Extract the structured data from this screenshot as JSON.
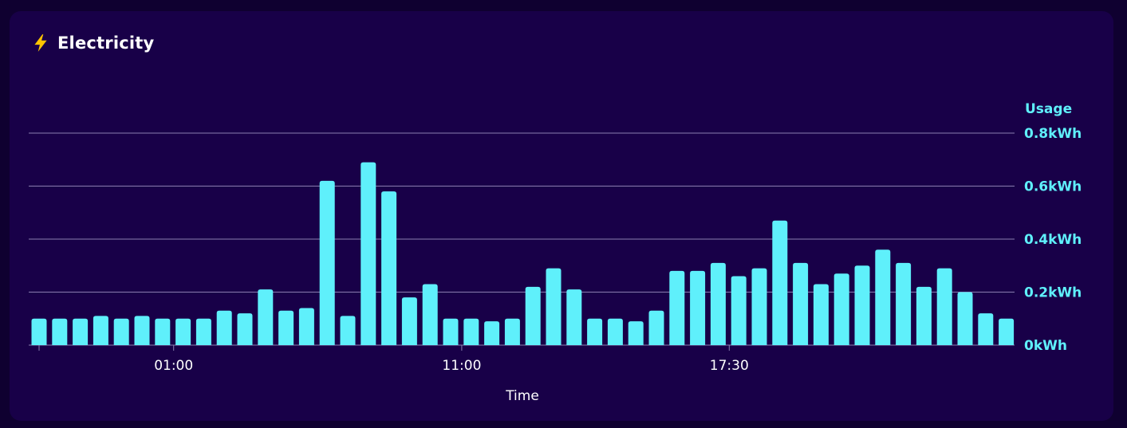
{
  "card": {
    "title": "Electricity",
    "icon": "lightning-bolt-icon",
    "accent_color": "#5ff0fb",
    "background_color": "#180048",
    "icon_color": "#ffc400"
  },
  "chart_data": {
    "type": "bar",
    "title": "",
    "xlabel": "Time",
    "ylabel": "Usage",
    "y_unit": "kWh",
    "ylim": [
      0,
      0.8
    ],
    "y_ticks": [
      "0kWh",
      "0.2kWh",
      "0.4kWh",
      "0.6kWh",
      "0.8kWh"
    ],
    "x_ticks": [
      {
        "label": "01:00",
        "index": 6
      },
      {
        "label": "11:00",
        "index": 20
      },
      {
        "label": "17:30",
        "index": 33
      }
    ],
    "grid": true,
    "bar_color": "#5ff0fb",
    "values": [
      0.1,
      0.1,
      0.1,
      0.11,
      0.1,
      0.11,
      0.1,
      0.1,
      0.1,
      0.13,
      0.12,
      0.21,
      0.13,
      0.14,
      0.62,
      0.11,
      0.69,
      0.58,
      0.18,
      0.23,
      0.1,
      0.1,
      0.09,
      0.1,
      0.22,
      0.29,
      0.21,
      0.1,
      0.1,
      0.09,
      0.13,
      0.28,
      0.28,
      0.31,
      0.26,
      0.29,
      0.47,
      0.31,
      0.23,
      0.27,
      0.3,
      0.36,
      0.31,
      0.22,
      0.29,
      0.2,
      0.12,
      0.1
    ]
  }
}
